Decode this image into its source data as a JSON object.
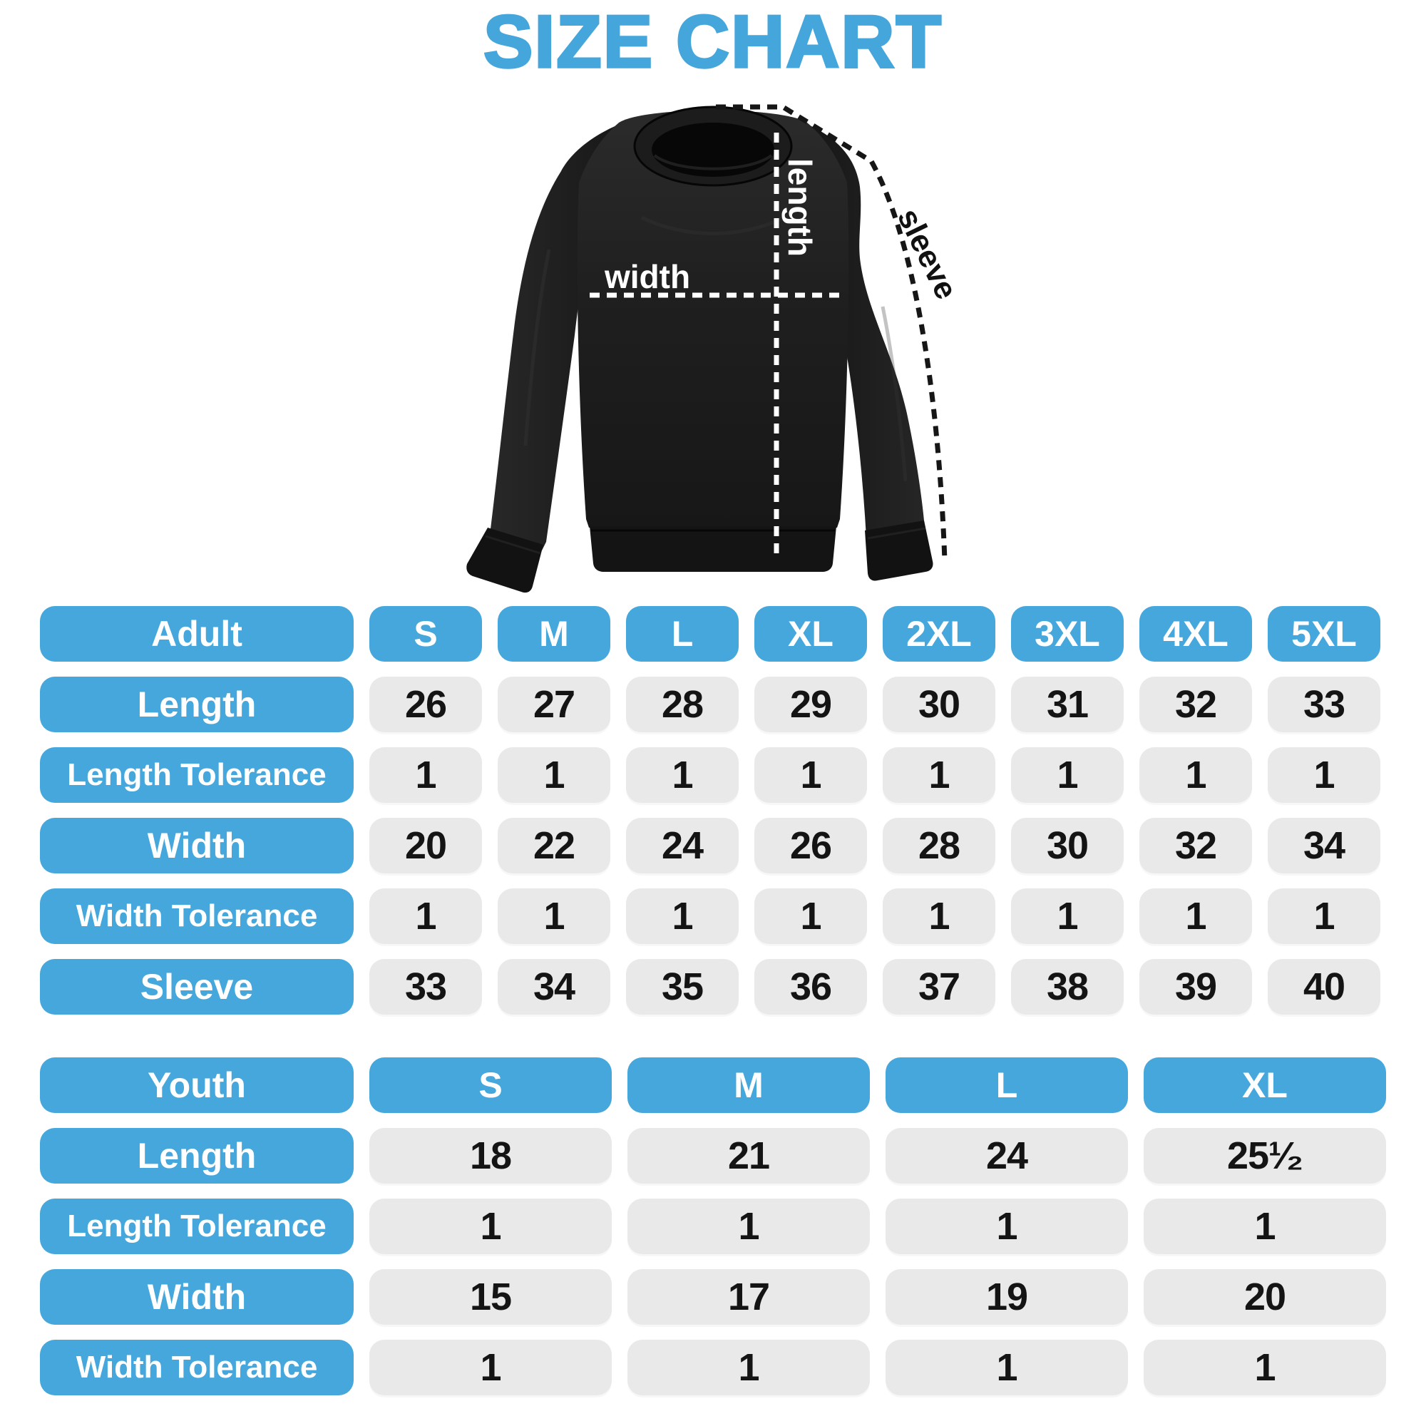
{
  "title": "SIZE CHART",
  "colors": {
    "accent_blue": "#45a7db",
    "cell_gray": "#e9e9e9",
    "text_dark": "#141414",
    "shirt_black": "#1e1e1e",
    "annotation_white": "#ffffff",
    "annotation_black": "#161616"
  },
  "diagram": {
    "garment": "crewneck-sweatshirt",
    "labels": {
      "length": "length",
      "width": "width",
      "sleeve": "sleeve"
    }
  },
  "adult_table": {
    "group_label": "Adult",
    "columns": [
      "S",
      "M",
      "L",
      "XL",
      "2XL",
      "3XL",
      "4XL",
      "5XL"
    ],
    "rows": [
      {
        "label": "Length",
        "values": [
          "26",
          "27",
          "28",
          "29",
          "30",
          "31",
          "32",
          "33"
        ]
      },
      {
        "label": "Length Tolerance",
        "values": [
          "1",
          "1",
          "1",
          "1",
          "1",
          "1",
          "1",
          "1"
        ]
      },
      {
        "label": "Width",
        "values": [
          "20",
          "22",
          "24",
          "26",
          "28",
          "30",
          "32",
          "34"
        ]
      },
      {
        "label": "Width Tolerance",
        "values": [
          "1",
          "1",
          "1",
          "1",
          "1",
          "1",
          "1",
          "1"
        ]
      },
      {
        "label": "Sleeve",
        "values": [
          "33",
          "34",
          "35",
          "36",
          "37",
          "38",
          "39",
          "40"
        ]
      }
    ]
  },
  "youth_table": {
    "group_label": "Youth",
    "columns": [
      "S",
      "M",
      "L",
      "XL"
    ],
    "rows": [
      {
        "label": "Length",
        "values": [
          "18",
          "21",
          "24",
          "25¹⁄₂"
        ]
      },
      {
        "label": "Length Tolerance",
        "values": [
          "1",
          "1",
          "1",
          "1"
        ]
      },
      {
        "label": "Width",
        "values": [
          "15",
          "17",
          "19",
          "20"
        ]
      },
      {
        "label": "Width Tolerance",
        "values": [
          "1",
          "1",
          "1",
          "1"
        ]
      }
    ]
  }
}
